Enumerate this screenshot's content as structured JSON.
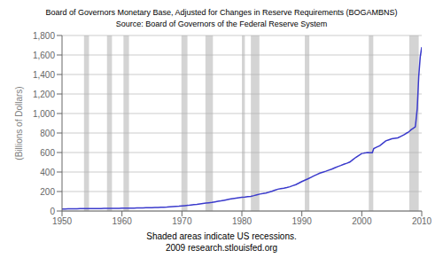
{
  "chart_data": {
    "type": "line",
    "title": "Board of Governors Monetary Base, Adjusted for Changes in Reserve Requirements (BOGAMBNS)",
    "subtitle": "Source:  Board of Governors of the Federal Reserve System",
    "ylabel": "(Billions of Dollars)",
    "annotations": [
      "Shaded areas indicate US recessions.",
      "2009 research.stlouisfed.org"
    ],
    "color": "#3a3acc",
    "grid": true,
    "xlim": [
      1950,
      2010
    ],
    "ylim": [
      0,
      1800
    ],
    "xticks": [
      1950,
      1960,
      1970,
      1980,
      1990,
      2000,
      2010
    ],
    "yticks": [
      0,
      200,
      400,
      600,
      800,
      {
        "value": 1000,
        "label": "1,000"
      },
      {
        "value": 1200,
        "label": "1,200"
      },
      {
        "value": 1400,
        "label": "1,400"
      },
      {
        "value": 1600,
        "label": "1,600"
      },
      {
        "value": 1800,
        "label": "1,800"
      }
    ],
    "recessions": {
      "color": "#b0b0b0",
      "ranges": [
        [
          1953.67,
          1954.5
        ],
        [
          1957.5,
          1958.33
        ],
        [
          1960.25,
          1961.17
        ],
        [
          1969.92,
          1970.92
        ],
        [
          1973.92,
          1975.17
        ],
        [
          1980.0,
          1980.5
        ],
        [
          1981.5,
          1982.92
        ],
        [
          1990.5,
          1991.25
        ],
        [
          2001.17,
          2001.92
        ],
        [
          2007.92,
          2009.5
        ]
      ]
    },
    "x": [
      1950.0,
      1950.5,
      1951.0,
      1951.5,
      1952.0,
      1952.5,
      1953.0,
      1953.5,
      1954.0,
      1954.5,
      1955.0,
      1955.5,
      1956.0,
      1956.5,
      1957.0,
      1957.5,
      1958.0,
      1958.5,
      1959.0,
      1959.5,
      1960.0,
      1960.5,
      1961.0,
      1961.5,
      1962.0,
      1962.5,
      1963.0,
      1963.5,
      1964.0,
      1964.5,
      1965.0,
      1965.5,
      1966.0,
      1966.5,
      1967.0,
      1967.5,
      1968.0,
      1968.5,
      1969.0,
      1969.5,
      1970.0,
      1970.5,
      1971.0,
      1971.5,
      1972.0,
      1972.5,
      1973.0,
      1973.5,
      1974.0,
      1974.5,
      1975.0,
      1975.5,
      1976.0,
      1976.5,
      1977.0,
      1977.5,
      1978.0,
      1978.5,
      1979.0,
      1979.5,
      1980.0,
      1980.5,
      1981.0,
      1981.5,
      1982.0,
      1982.5,
      1983.0,
      1983.5,
      1984.0,
      1984.5,
      1985.0,
      1985.5,
      1986.0,
      1986.5,
      1987.0,
      1987.5,
      1988.0,
      1988.5,
      1989.0,
      1989.5,
      1990.0,
      1990.5,
      1991.0,
      1991.5,
      1992.0,
      1992.5,
      1993.0,
      1993.5,
      1994.0,
      1994.5,
      1995.0,
      1995.5,
      1996.0,
      1996.5,
      1997.0,
      1997.5,
      1998.0,
      1998.5,
      1999.0,
      1999.5,
      2000.0,
      2000.25,
      2000.5,
      2000.75,
      2001.0,
      2001.25,
      2001.5,
      2001.75,
      2002.0,
      2002.5,
      2003.0,
      2003.5,
      2004.0,
      2004.5,
      2005.0,
      2005.5,
      2006.0,
      2006.5,
      2007.0,
      2007.25,
      2007.5,
      2007.75,
      2008.0,
      2008.25,
      2008.5,
      2008.75,
      2008.92,
      2009.0,
      2009.25,
      2009.5,
      2009.75,
      2010.0
    ],
    "values": [
      20,
      20,
      22,
      22,
      23,
      23,
      24,
      24,
      24,
      24,
      25,
      25,
      26,
      26,
      27,
      27,
      27,
      28,
      28,
      28,
      29,
      29,
      29,
      30,
      30,
      31,
      32,
      32,
      33,
      34,
      35,
      36,
      37,
      38,
      39,
      40,
      43,
      45,
      47,
      49,
      52,
      55,
      58,
      62,
      66,
      69,
      73,
      77,
      81,
      85,
      89,
      94,
      99,
      104,
      110,
      116,
      122,
      127,
      132,
      136,
      140,
      143,
      147,
      151,
      158,
      166,
      174,
      179,
      185,
      193,
      202,
      213,
      224,
      229,
      234,
      241,
      249,
      260,
      271,
      286,
      302,
      316,
      330,
      345,
      360,
      374,
      388,
      398,
      408,
      419,
      430,
      443,
      456,
      467,
      479,
      490,
      502,
      526,
      550,
      570,
      590,
      592,
      595,
      597,
      600,
      598,
      597,
      598,
      640,
      655,
      670,
      695,
      720,
      730,
      740,
      745,
      750,
      765,
      780,
      790,
      800,
      808,
      820,
      835,
      845,
      855,
      862,
      900,
      1050,
      1380,
      1580,
      1680
    ]
  }
}
